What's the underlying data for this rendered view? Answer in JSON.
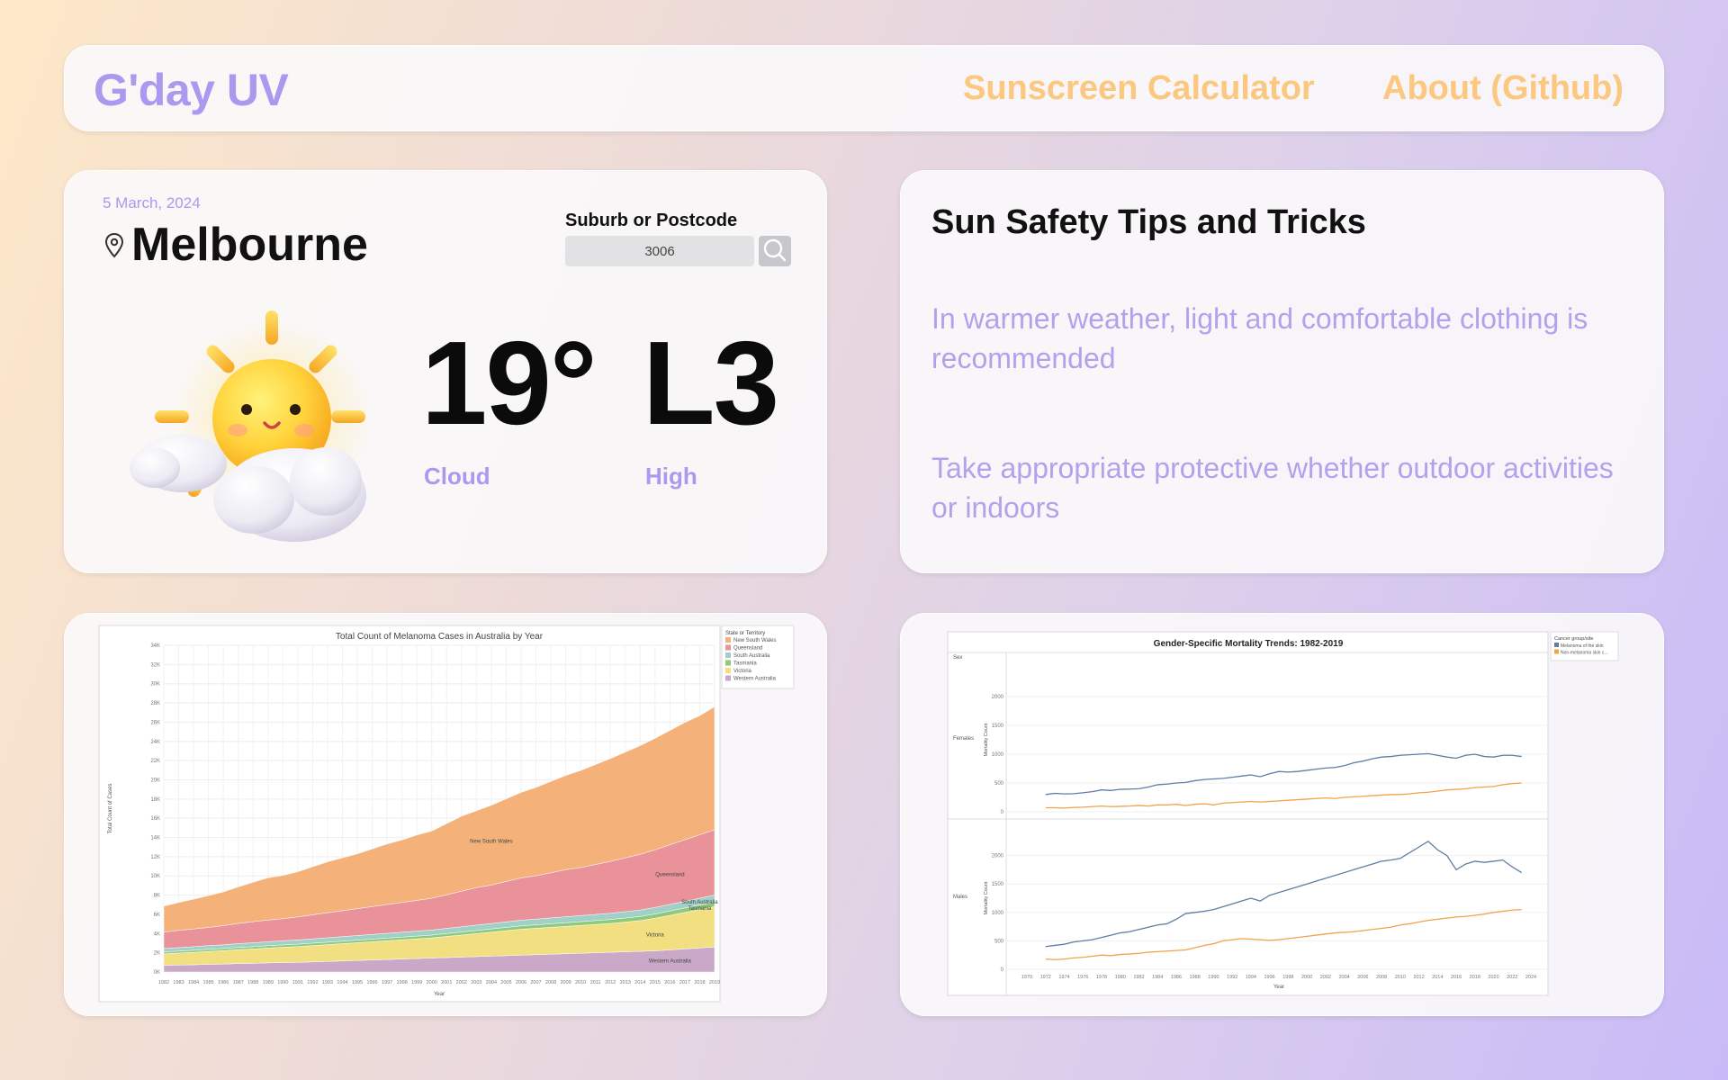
{
  "header": {
    "brand": "G'day UV",
    "nav": {
      "sunscreen": "Sunscreen Calculator",
      "about": "About (Github)"
    }
  },
  "weather": {
    "date": "5 March, 2024",
    "city": "Melbourne",
    "search_label": "Suburb or Postcode",
    "search_value": "3006",
    "temperature": "19°",
    "uv_level": "L3",
    "condition": "Cloud",
    "uv_description": "High"
  },
  "tips": {
    "title": "Sun Safety Tips and Tricks",
    "items": [
      "In warmer weather, light and comfortable clothing is recommended",
      "Take appropriate protective whether outdoor activities or indoors"
    ]
  },
  "colors": {
    "accent": "#a99af0",
    "nav": "#fcc77f"
  },
  "chart_data": [
    {
      "type": "area",
      "title": "Total Count of Melanoma Cases in Australia by Year",
      "xlabel": "Year",
      "ylabel": "Total Count of Cases",
      "legend_title": "State or Territory",
      "legend_position": "right",
      "ylim": [
        0,
        34000
      ],
      "yticks": [
        "0K",
        "2K",
        "4K",
        "6K",
        "8K",
        "10K",
        "12K",
        "14K",
        "16K",
        "18K",
        "20K",
        "22K",
        "24K",
        "26K",
        "28K",
        "30K",
        "32K",
        "34K"
      ],
      "x": [
        1982,
        1983,
        1984,
        1985,
        1986,
        1987,
        1988,
        1989,
        1990,
        1991,
        1992,
        1993,
        1994,
        1995,
        1996,
        1997,
        1998,
        1999,
        2000,
        2001,
        2002,
        2003,
        2004,
        2005,
        2006,
        2007,
        2008,
        2009,
        2010,
        2011,
        2012,
        2013,
        2014,
        2015,
        2016,
        2017,
        2018,
        2019
      ],
      "series": [
        {
          "name": "Western Australia",
          "label": "Western Australia",
          "color": "#c9a8c8",
          "values": [
            700,
            720,
            750,
            800,
            820,
            880,
            900,
            950,
            980,
            1000,
            1050,
            1100,
            1150,
            1200,
            1250,
            1300,
            1350,
            1400,
            1450,
            1500,
            1550,
            1600,
            1650,
            1700,
            1750,
            1800,
            1850,
            1900,
            1950,
            2000,
            2050,
            2100,
            2150,
            2200,
            2300,
            2400,
            2500,
            2600
          ]
        },
        {
          "name": "Victoria",
          "label": "Victoria",
          "color": "#f1df82",
          "values": [
            1200,
            1250,
            1300,
            1350,
            1400,
            1450,
            1500,
            1550,
            1600,
            1650,
            1700,
            1750,
            1800,
            1850,
            1900,
            1950,
            2000,
            2050,
            2100,
            2200,
            2300,
            2400,
            2500,
            2600,
            2700,
            2750,
            2800,
            2850,
            2900,
            2950,
            3000,
            3100,
            3200,
            3400,
            3600,
            3800,
            4000,
            4200
          ]
        },
        {
          "name": "Tasmania",
          "label": "Tasmania",
          "color": "#8fc97a",
          "values": [
            200,
            205,
            210,
            215,
            220,
            225,
            230,
            235,
            240,
            245,
            250,
            255,
            260,
            265,
            270,
            275,
            280,
            285,
            290,
            300,
            310,
            320,
            330,
            340,
            350,
            360,
            370,
            380,
            390,
            400,
            410,
            420,
            430,
            440,
            450,
            460,
            470,
            480
          ]
        },
        {
          "name": "South Australia",
          "label": "South Australia",
          "color": "#9fd1c9",
          "values": [
            350,
            360,
            370,
            380,
            390,
            400,
            410,
            420,
            430,
            440,
            450,
            460,
            470,
            480,
            490,
            500,
            510,
            520,
            530,
            540,
            550,
            560,
            570,
            580,
            590,
            600,
            610,
            620,
            630,
            640,
            650,
            660,
            670,
            680,
            690,
            700,
            710,
            720
          ]
        },
        {
          "name": "Queensland",
          "label": "Queensland",
          "color": "#e9929a",
          "values": [
            1700,
            1800,
            1850,
            1900,
            2000,
            2100,
            2200,
            2250,
            2300,
            2400,
            2500,
            2600,
            2700,
            2800,
            2900,
            3000,
            3100,
            3200,
            3300,
            3500,
            3700,
            3900,
            4000,
            4200,
            4400,
            4500,
            4700,
            4900,
            5000,
            5200,
            5400,
            5600,
            5800,
            6000,
            6200,
            6400,
            6600,
            6800
          ]
        },
        {
          "name": "New South Wales",
          "label": "New South Wales",
          "color": "#f4b27a",
          "values": [
            2700,
            2900,
            3100,
            3300,
            3500,
            3800,
            4100,
            4400,
            4500,
            4700,
            5000,
            5300,
            5500,
            5700,
            6000,
            6300,
            6500,
            6800,
            7000,
            7400,
            7800,
            8000,
            8300,
            8600,
            8900,
            9200,
            9500,
            9800,
            10100,
            10400,
            10700,
            11000,
            11300,
            11600,
            11900,
            12200,
            12400,
            12800
          ]
        }
      ],
      "annotations": [
        "New South Wales",
        "Queensland",
        "South Australia",
        "Tasmania",
        "Victoria",
        "Western Australia"
      ]
    },
    {
      "type": "line",
      "title": "Gender-Specific Mortality Trends: 1982-2019",
      "xlabel": "Year",
      "ylabel": "Mortality Count",
      "row_header": "Sex",
      "legend_title": "Cancer group/site",
      "legend_position": "right",
      "xlim": [
        1970,
        2024
      ],
      "xticks": [
        1970,
        1972,
        1974,
        1976,
        1978,
        1980,
        1982,
        1984,
        1986,
        1988,
        1990,
        1992,
        1994,
        1996,
        1998,
        2000,
        2002,
        2004,
        2006,
        2008,
        2010,
        2012,
        2014,
        2016,
        2018,
        2020,
        2022,
        2024
      ],
      "legend": [
        {
          "name": "Melanoma of the skin",
          "color": "#5b7fa6"
        },
        {
          "name": "Non-melanoma skin c...",
          "color": "#f2a34a"
        }
      ],
      "panels": [
        {
          "label": "Females",
          "ylim": [
            0,
            2500
          ],
          "yticks": [
            0,
            500,
            1000,
            1500,
            2000
          ],
          "x": [
            1972,
            1973,
            1974,
            1975,
            1976,
            1977,
            1978,
            1979,
            1980,
            1981,
            1982,
            1983,
            1984,
            1985,
            1986,
            1987,
            1988,
            1989,
            1990,
            1991,
            1992,
            1993,
            1994,
            1995,
            1996,
            1997,
            1998,
            1999,
            2000,
            2001,
            2002,
            2003,
            2004,
            2005,
            2006,
            2007,
            2008,
            2009,
            2010,
            2011,
            2012,
            2013,
            2014,
            2015,
            2016,
            2017,
            2018,
            2019,
            2020,
            2021,
            2022,
            2023
          ],
          "series": [
            {
              "name": "Melanoma of the skin",
              "values": [
                300,
                320,
                310,
                315,
                330,
                350,
                380,
                370,
                390,
                395,
                400,
                430,
                470,
                480,
                500,
                510,
                540,
                560,
                570,
                580,
                600,
                620,
                640,
                610,
                660,
                700,
                690,
                700,
                720,
                740,
                760,
                770,
                800,
                850,
                880,
                920,
                950,
                960,
                980,
                990,
                1000,
                1010,
                980,
                950,
                930,
                980,
                1000,
                960,
                950,
                980,
                980,
                960
              ]
            },
            {
              "name": "Non-melanoma skin c...",
              "values": [
                70,
                70,
                65,
                75,
                80,
                90,
                100,
                90,
                95,
                100,
                110,
                100,
                120,
                120,
                130,
                110,
                130,
                140,
                120,
                150,
                160,
                170,
                180,
                170,
                180,
                190,
                200,
                210,
                220,
                230,
                240,
                230,
                250,
                260,
                270,
                280,
                290,
                300,
                300,
                310,
                330,
                340,
                360,
                380,
                390,
                400,
                420,
                430,
                440,
                470,
                490,
                500
              ]
            }
          ]
        },
        {
          "label": "Males",
          "ylim": [
            0,
            2500
          ],
          "yticks": [
            0,
            500,
            1000,
            1500,
            2000
          ],
          "x": [
            1972,
            1973,
            1974,
            1975,
            1976,
            1977,
            1978,
            1979,
            1980,
            1981,
            1982,
            1983,
            1984,
            1985,
            1986,
            1987,
            1988,
            1989,
            1990,
            1991,
            1992,
            1993,
            1994,
            1995,
            1996,
            1997,
            1998,
            1999,
            2000,
            2001,
            2002,
            2003,
            2004,
            2005,
            2006,
            2007,
            2008,
            2009,
            2010,
            2011,
            2012,
            2013,
            2014,
            2015,
            2016,
            2017,
            2018,
            2019,
            2020,
            2021,
            2022,
            2023
          ],
          "series": [
            {
              "name": "Melanoma of the skin",
              "values": [
                400,
                420,
                440,
                480,
                500,
                520,
                560,
                600,
                640,
                660,
                700,
                740,
                780,
                800,
                880,
                980,
                1000,
                1020,
                1050,
                1100,
                1150,
                1200,
                1250,
                1200,
                1300,
                1350,
                1400,
                1450,
                1500,
                1550,
                1600,
                1650,
                1700,
                1750,
                1800,
                1850,
                1900,
                1920,
                1950,
                2050,
                2150,
                2250,
                2100,
                2000,
                1750,
                1850,
                1900,
                1880,
                1900,
                1920,
                1800,
                1700
              ]
            },
            {
              "name": "Non-melanoma skin c...",
              "values": [
                180,
                170,
                180,
                200,
                210,
                230,
                250,
                240,
                260,
                270,
                280,
                300,
                310,
                320,
                330,
                340,
                380,
                420,
                450,
                500,
                520,
                540,
                530,
                520,
                510,
                520,
                540,
                560,
                580,
                600,
                620,
                640,
                650,
                660,
                680,
                700,
                720,
                740,
                780,
                800,
                830,
                860,
                880,
                900,
                920,
                930,
                950,
                970,
                1000,
                1020,
                1040,
                1050
              ]
            }
          ]
        }
      ]
    }
  ]
}
